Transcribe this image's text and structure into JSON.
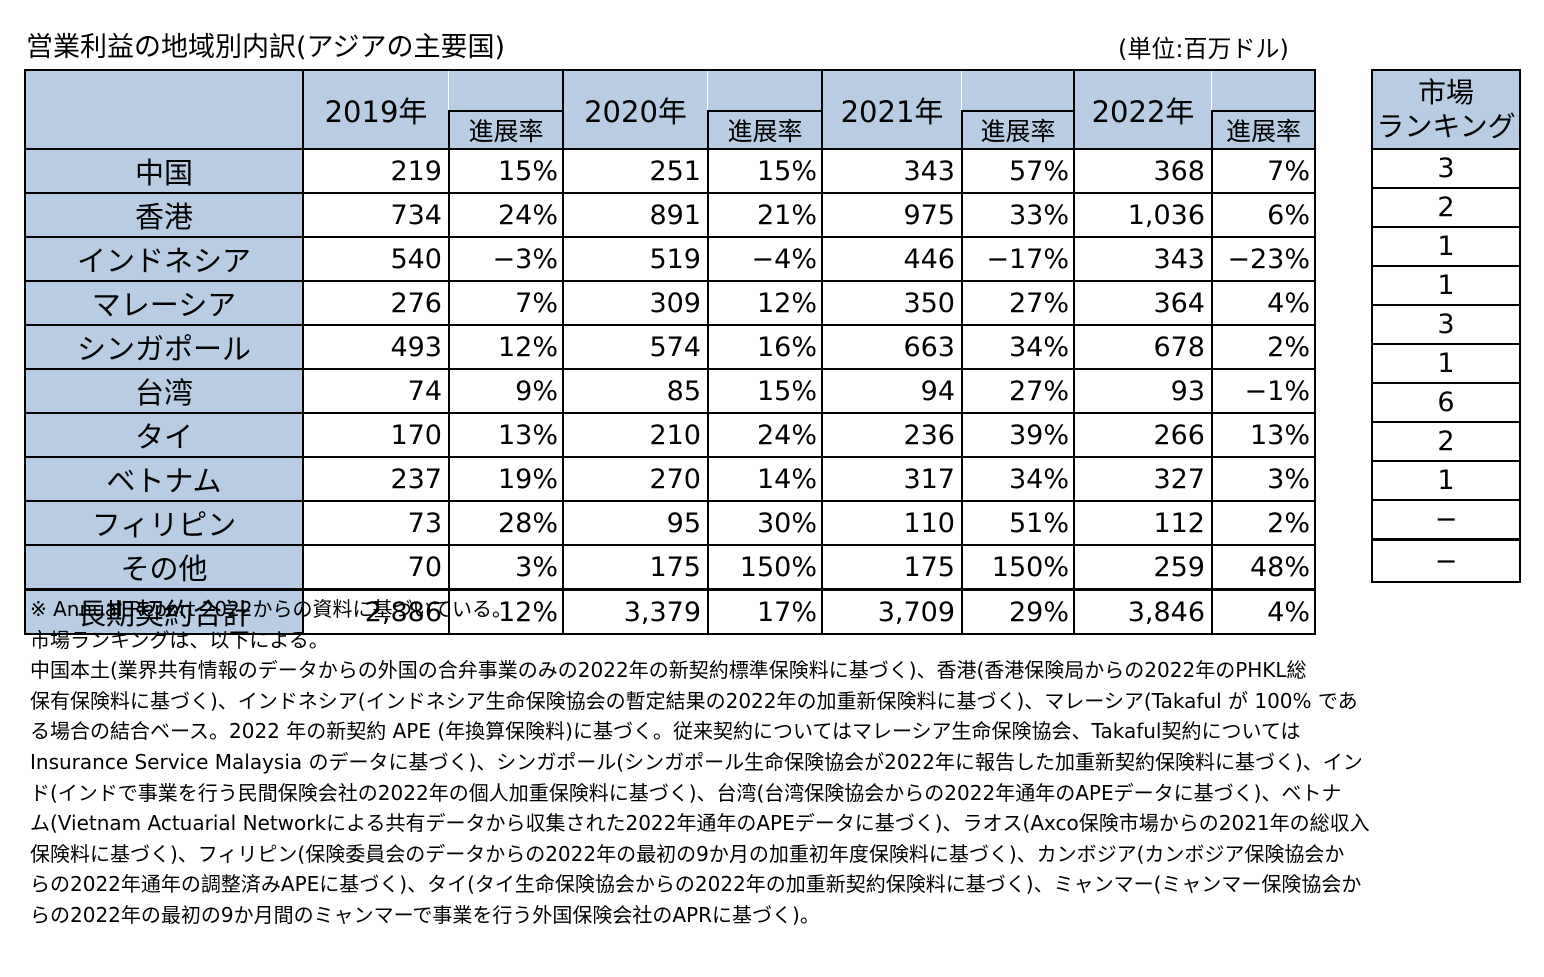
{
  "title": "営業利益の地域別内訳(アジアの主要国)",
  "unit": "(単位:百万ドル)",
  "years": [
    "2019年",
    "2020年",
    "2021年",
    "2022年"
  ],
  "sub_label": "進展率",
  "rank_header_line1": "市場",
  "rank_header_line2": "ランキング",
  "rows": [
    {
      "country": "中国",
      "v": [
        "219",
        "251",
        "343",
        "368"
      ],
      "p": [
        "15%",
        "15%",
        "57%",
        "7%"
      ],
      "rank": "3"
    },
    {
      "country": "香港",
      "v": [
        "734",
        "891",
        "975",
        "1,036"
      ],
      "p": [
        "24%",
        "21%",
        "33%",
        "6%"
      ],
      "rank": "2"
    },
    {
      "country": "インドネシア",
      "v": [
        "540",
        "519",
        "446",
        "343"
      ],
      "p": [
        "−3%",
        "−4%",
        "−17%",
        "−23%"
      ],
      "rank": "1"
    },
    {
      "country": "マレーシア",
      "v": [
        "276",
        "309",
        "350",
        "364"
      ],
      "p": [
        "7%",
        "12%",
        "27%",
        "4%"
      ],
      "rank": "1"
    },
    {
      "country": "シンガポール",
      "v": [
        "493",
        "574",
        "663",
        "678"
      ],
      "p": [
        "12%",
        "16%",
        "34%",
        "2%"
      ],
      "rank": "3"
    },
    {
      "country": "台湾",
      "v": [
        "74",
        "85",
        "94",
        "93"
      ],
      "p": [
        "9%",
        "15%",
        "27%",
        "−1%"
      ],
      "rank": "1"
    },
    {
      "country": "タイ",
      "v": [
        "170",
        "210",
        "236",
        "266"
      ],
      "p": [
        "13%",
        "24%",
        "39%",
        "13%"
      ],
      "rank": "6"
    },
    {
      "country": "ベトナム",
      "v": [
        "237",
        "270",
        "317",
        "327"
      ],
      "p": [
        "19%",
        "14%",
        "34%",
        "3%"
      ],
      "rank": "2"
    },
    {
      "country": "フィリピン",
      "v": [
        "73",
        "95",
        "110",
        "112"
      ],
      "p": [
        "28%",
        "30%",
        "51%",
        "2%"
      ],
      "rank": "1"
    },
    {
      "country": "その他",
      "v": [
        "70",
        "175",
        "175",
        "259"
      ],
      "p": [
        "3%",
        "150%",
        "150%",
        "48%"
      ],
      "rank": "−"
    }
  ],
  "total": {
    "country": "長期契約合計",
    "v": [
      "2,886",
      "3,379",
      "3,709",
      "3,846"
    ],
    "p": [
      "12%",
      "17%",
      "29%",
      "4%"
    ],
    "rank": "−"
  },
  "notes": [
    "※  Annual Report 2022からの資料に基づいている。",
    "市場ランキングは、以下による。",
    "中国本土(業界共有情報のデータからの外国の合弁事業のみの2022年の新契約標準保険料に基づく)、香港(香港保険局からの2022年のPHKL総",
    "保有保険料に基づく)、インドネシア(インドネシア生命保険協会の暫定結果の2022年の加重新保険料に基づく)、マレーシア(Takaful が 100% であ",
    "る場合の結合ベース。2022 年の新契約 APE (年換算保険料)に基づく。従来契約についてはマレーシア生命保険協会、Takaful契約については",
    "Insurance Service Malaysia のデータに基づく)、シンガポール(シンガポール生命保険協会が2022年に報告した加重新契約保険料に基づく)、イン",
    "ド(インドで事業を行う民間保険会社の2022年の個人加重保険料に基づく)、台湾(台湾保険協会からの2022年通年のAPEデータに基づく)、ベトナ",
    "ム(Vietnam Actuarial Networkによる共有データから収集された2022年通年のAPEデータに基づく)、ラオス(Axco保険市場からの2021年の総収入",
    "保険料に基づく)、フィリピン(保険委員会のデータからの2022年の最初の9か月の加重初年度保険料に基づく)、カンボジア(カンボジア保険協会か",
    "らの2022年通年の調整済みAPEに基づく)、タイ(タイ生命保険協会からの2022年の加重新契約保険料に基づく)、ミャンマー(ミャンマー保険協会か",
    "らの2022年の最初の9か月間のミャンマーで事業を行う外国保険会社のAPRに基づく)。"
  ]
}
